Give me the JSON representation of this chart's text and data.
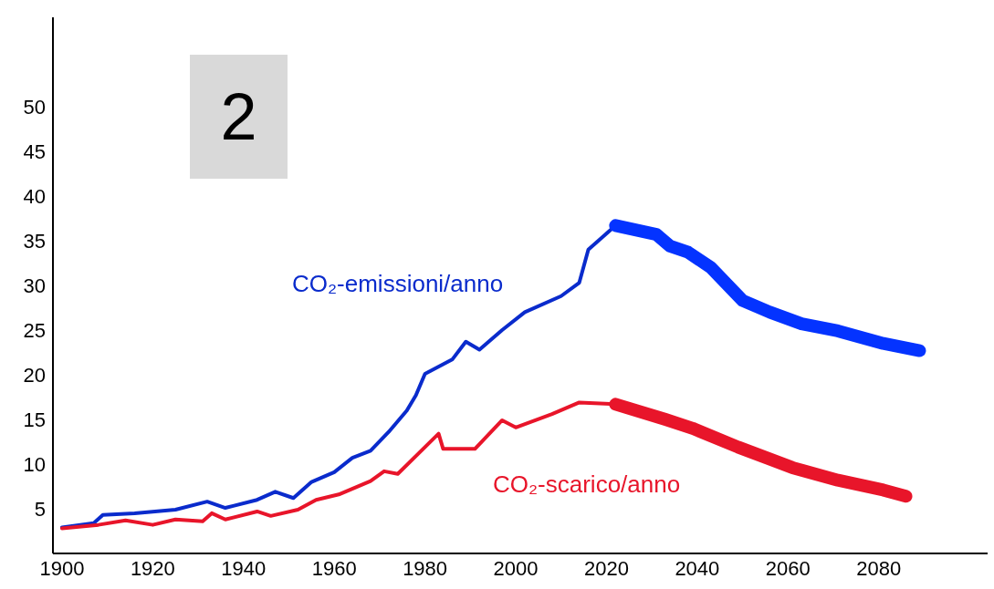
{
  "chart_data": {
    "type": "line",
    "annotations": [
      "2"
    ],
    "xlim": [
      1898,
      2104
    ],
    "xticks": [
      1900,
      1920,
      1940,
      1960,
      1980,
      2000,
      2020,
      2040,
      2060,
      2080
    ],
    "ylim": [
      0,
      60
    ],
    "yticks": [
      5,
      10,
      15,
      20,
      25,
      30,
      35,
      40,
      45,
      50
    ],
    "grid": false,
    "legend": false,
    "marker": "none",
    "line_style": "solid",
    "series": [
      {
        "name": "CO₂-emissioni/anno",
        "color": "#0a2bcc",
        "x": [
          1900,
          1907,
          1909,
          1916,
          1925,
          1932,
          1936,
          1943,
          1947,
          1951,
          1955,
          1960,
          1964,
          1968,
          1972,
          1976,
          1978,
          1980,
          1986,
          1989,
          1992,
          1997,
          2002,
          2010,
          2014,
          2016,
          2022
        ],
        "values": [
          2.9,
          3.4,
          4.3,
          4.5,
          4.9,
          5.8,
          5.1,
          6.0,
          6.9,
          6.2,
          8.0,
          9.1,
          10.7,
          11.5,
          13.6,
          16.0,
          17.7,
          20.1,
          21.7,
          23.7,
          22.8,
          25.0,
          27.0,
          28.8,
          30.3,
          34.0,
          36.7
        ]
      },
      {
        "color": "#0433ff",
        "x": [
          2022,
          2031,
          2034,
          2038,
          2043,
          2050,
          2056,
          2063,
          2071,
          2081,
          2089
        ],
        "values": [
          36.7,
          35.7,
          34.4,
          33.7,
          32.0,
          28.3,
          27.0,
          25.7,
          24.9,
          23.5,
          22.7
        ]
      },
      {
        "name": "CO₂-scarico/anno",
        "color": "#e8152a",
        "x": [
          1900,
          1908,
          1914,
          1920,
          1925,
          1931,
          1933,
          1936,
          1943,
          1946,
          1952,
          1956,
          1961,
          1968,
          1971,
          1974,
          1983,
          1984,
          1991,
          1997,
          2000,
          2008,
          2014,
          2022
        ],
        "values": [
          2.8,
          3.2,
          3.7,
          3.2,
          3.8,
          3.6,
          4.5,
          3.8,
          4.7,
          4.2,
          4.9,
          6.0,
          6.6,
          8.1,
          9.2,
          8.9,
          13.4,
          11.7,
          11.7,
          14.9,
          14.1,
          15.6,
          16.9,
          16.7
        ]
      },
      {
        "color": "#e8152a",
        "x": [
          2022,
          2033,
          2039,
          2049,
          2061,
          2071,
          2081,
          2086
        ],
        "values": [
          16.7,
          15.0,
          14.0,
          11.9,
          9.6,
          8.2,
          7.1,
          6.4
        ]
      }
    ]
  }
}
